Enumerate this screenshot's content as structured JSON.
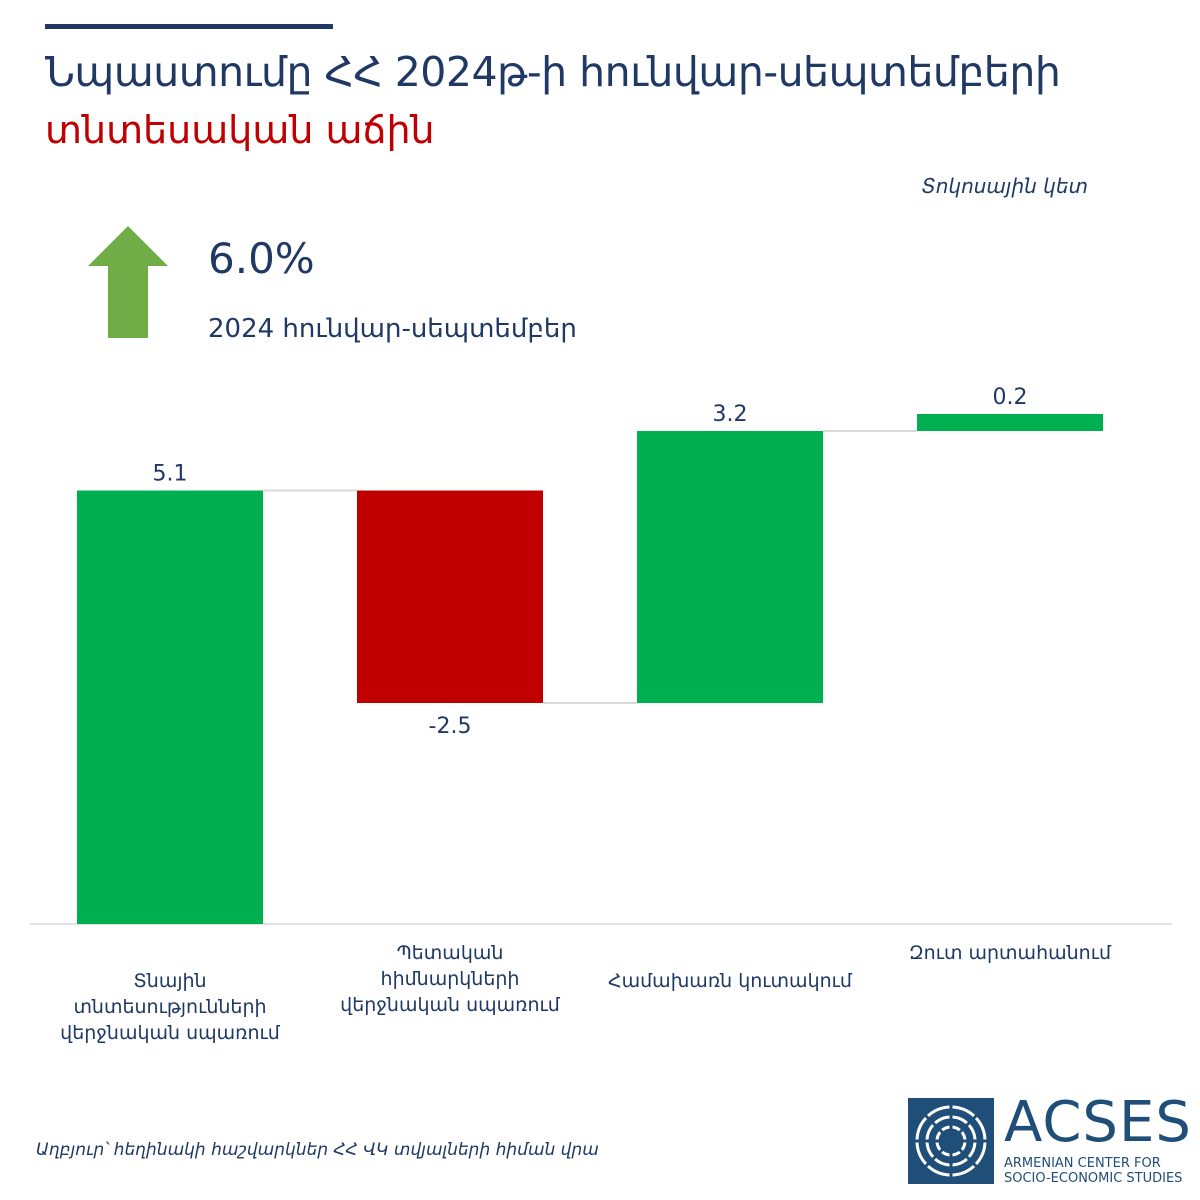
{
  "title": {
    "line1": "Նպաստումը ՀՀ 2024թ-ի հունվար-սեպտեմբերի",
    "line2": "տնտեսական աճին"
  },
  "unit_label": "Տոկոսային կետ",
  "kpi": {
    "value": "6.0%",
    "period": "2024 հունվար-սեպտեմբեր",
    "arrow_icon": "up-arrow-icon",
    "arrow_color": "#70ad47"
  },
  "chart_data": {
    "type": "waterfall",
    "categories": [
      "Տնային տնտեսությունների վերջնական սպառում",
      "Պետական հիմնարկների վերջնական սպառում",
      "Համախառն կուտակում",
      "Զուտ արտահանում"
    ],
    "values": [
      5.1,
      -2.5,
      3.2,
      0.2
    ],
    "value_labels": [
      "5.1",
      "-2.5",
      "3.2",
      "0.2"
    ],
    "colors": {
      "positive": "#00b050",
      "negative": "#c00000"
    }
  },
  "source": "Աղբյուր՝ հեղինակի հաշվարկներ ՀՀ ՎԿ տվյալների հիման վրա",
  "logo": {
    "name": "ACSES",
    "subtitle_line1": "ARMENIAN CENTER FOR",
    "subtitle_line2": "SOCIO-ECONOMIC STUDIES",
    "color": "#1f4e79"
  }
}
